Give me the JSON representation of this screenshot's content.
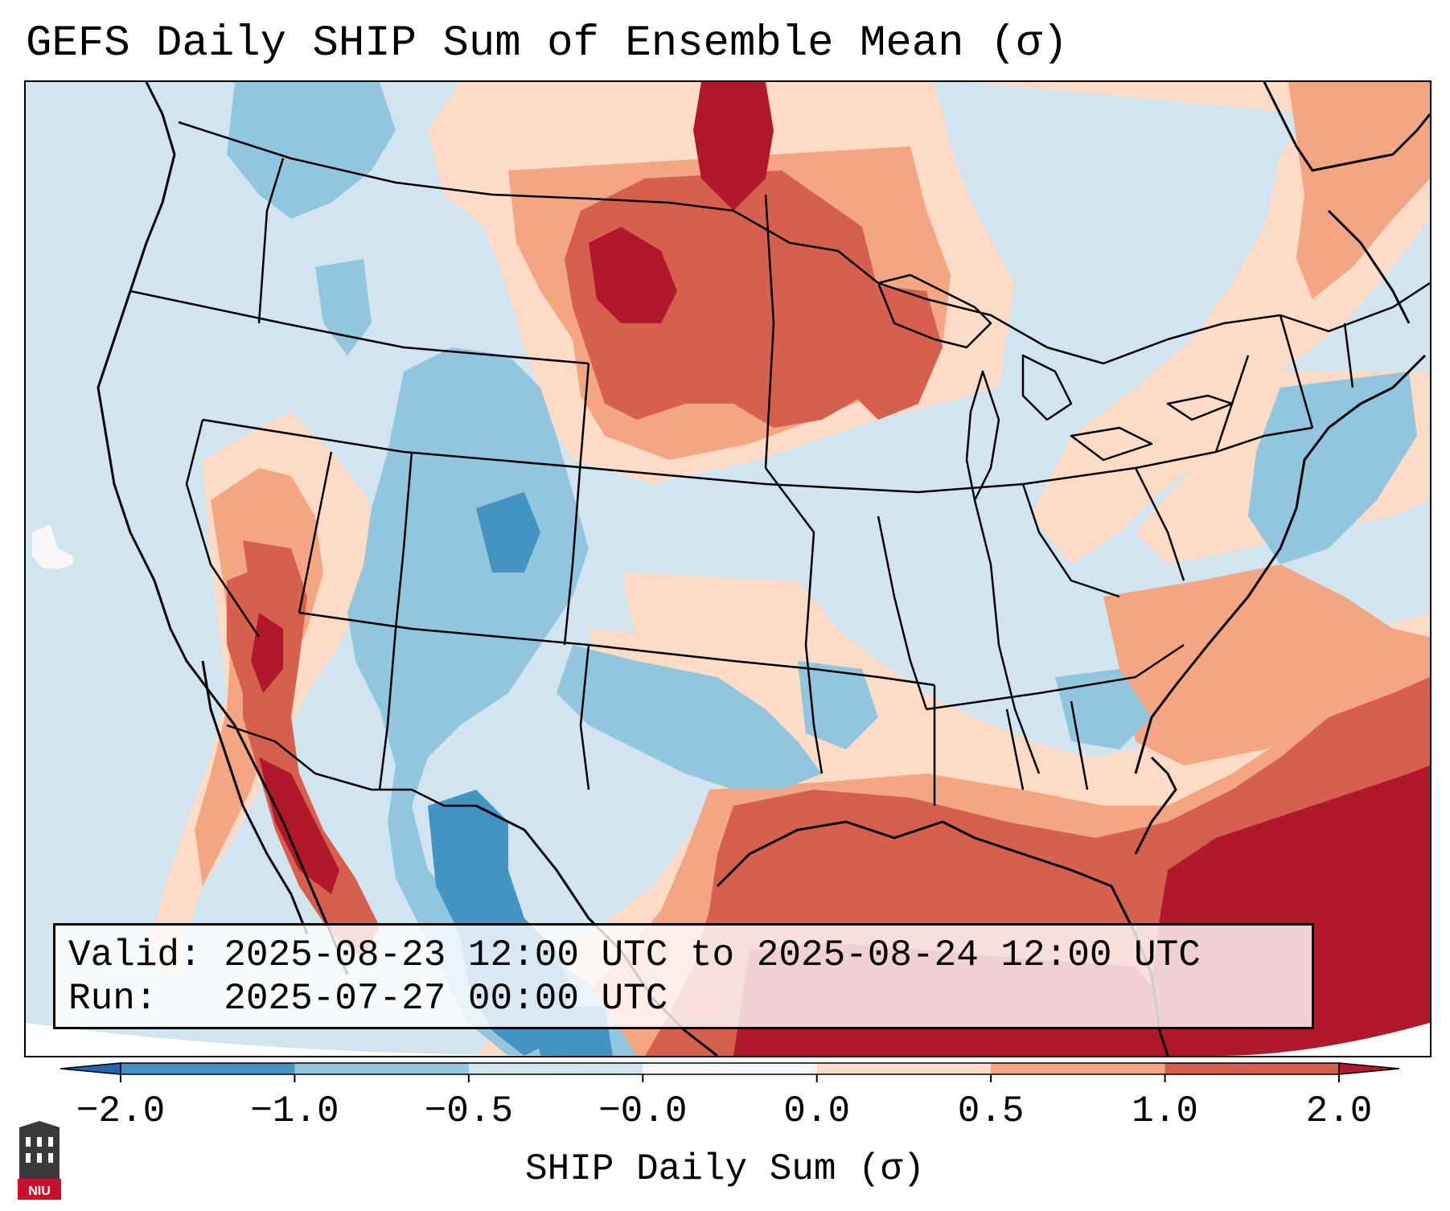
{
  "title": "GEFS Daily SHIP Sum of Ensemble Mean (σ)",
  "info": {
    "valid_label": "Valid:",
    "valid_value": "2025-08-23 12:00 UTC to 2025-08-24 12:00 UTC",
    "run_label": "Run:",
    "run_value": "2025-07-27 00:00 UTC"
  },
  "colorbar": {
    "label": "SHIP Daily Sum (σ)",
    "ticks": [
      "−2.0",
      "−1.0",
      "−0.5",
      "−0.0",
      "0.0",
      "0.5",
      "1.0",
      "2.0"
    ],
    "bin_colors": [
      "#2166ac",
      "#4393c3",
      "#92c5de",
      "#d1e5f0",
      "#f7f7f7",
      "#fddbc7",
      "#f4a582",
      "#d6604d",
      "#b2182b"
    ],
    "under_color": "#2166ac",
    "over_color": "#b2182b"
  },
  "map": {
    "background_color": "#d1e5f0",
    "region": "Contiguous United States",
    "regions": [
      {
        "name": "N. Plains / Upper Midwest",
        "category": "1.0 to 2.0"
      },
      {
        "name": "Gulf of Mexico",
        "category": "1.0 to 2.0"
      },
      {
        "name": "W. Atlantic / Bahamas",
        "category": "> 2.0"
      },
      {
        "name": "Desert Southwest / Baja",
        "category": "> 2.0"
      },
      {
        "name": "Colorado Rockies",
        "category": "-2.0 to -1.0"
      },
      {
        "name": "West Texas / N. Mexico",
        "category": "-2.0 to -1.0"
      }
    ]
  },
  "logo": {
    "text": "NIU",
    "color": "#c8102e"
  }
}
